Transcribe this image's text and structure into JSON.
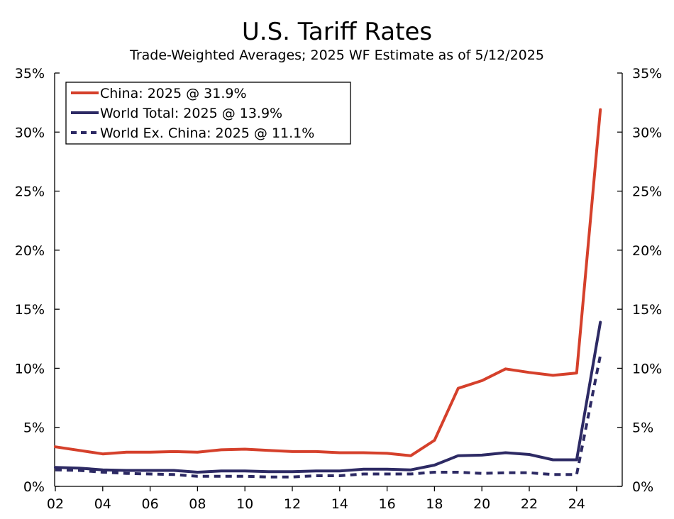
{
  "chart_data": {
    "type": "line",
    "title": "U.S. Tariff Rates",
    "subtitle": "Trade-Weighted Averages; 2025 WF Estimate as of 5/12/2025",
    "xlabel": "",
    "ylabel": "",
    "xlim": [
      2002,
      2026
    ],
    "ylim": [
      0,
      35
    ],
    "x_tick_labels": [
      "02",
      "04",
      "06",
      "08",
      "10",
      "12",
      "14",
      "16",
      "18",
      "20",
      "22",
      "24"
    ],
    "x_tick_values": [
      2002,
      2004,
      2006,
      2008,
      2010,
      2012,
      2014,
      2016,
      2018,
      2020,
      2022,
      2024
    ],
    "y_tick_labels": [
      "0%",
      "5%",
      "10%",
      "15%",
      "20%",
      "25%",
      "30%",
      "35%"
    ],
    "y_tick_values": [
      0,
      5,
      10,
      15,
      20,
      25,
      30,
      35
    ],
    "grid": false,
    "legend_position": "top-left",
    "x": [
      2002,
      2003,
      2004,
      2005,
      2006,
      2007,
      2008,
      2009,
      2010,
      2011,
      2012,
      2013,
      2014,
      2015,
      2016,
      2017,
      2018,
      2019,
      2020,
      2021,
      2022,
      2023,
      2024,
      2025
    ],
    "series": [
      {
        "name": "China: 2025 @ 31.9%",
        "color": "#d5402b",
        "dash": "solid",
        "values": [
          3.35,
          3.05,
          2.75,
          2.9,
          2.9,
          2.95,
          2.9,
          3.1,
          3.15,
          3.05,
          2.95,
          2.95,
          2.85,
          2.85,
          2.8,
          2.6,
          3.9,
          8.3,
          8.95,
          9.95,
          9.65,
          9.4,
          9.6,
          31.9
        ]
      },
      {
        "name": "World Total: 2025 @ 13.9%",
        "color": "#2d2a64",
        "dash": "solid",
        "values": [
          1.6,
          1.55,
          1.4,
          1.35,
          1.35,
          1.35,
          1.2,
          1.3,
          1.3,
          1.25,
          1.25,
          1.3,
          1.3,
          1.45,
          1.45,
          1.4,
          1.8,
          2.6,
          2.65,
          2.85,
          2.7,
          2.25,
          2.25,
          13.9
        ]
      },
      {
        "name": "World Ex. China: 2025 @ 11.1%",
        "color": "#2d2a64",
        "dash": "dashed",
        "values": [
          1.4,
          1.35,
          1.2,
          1.1,
          1.05,
          1.0,
          0.85,
          0.85,
          0.85,
          0.8,
          0.8,
          0.9,
          0.9,
          1.05,
          1.05,
          1.05,
          1.2,
          1.2,
          1.1,
          1.15,
          1.15,
          1.0,
          1.0,
          11.1
        ]
      }
    ]
  }
}
